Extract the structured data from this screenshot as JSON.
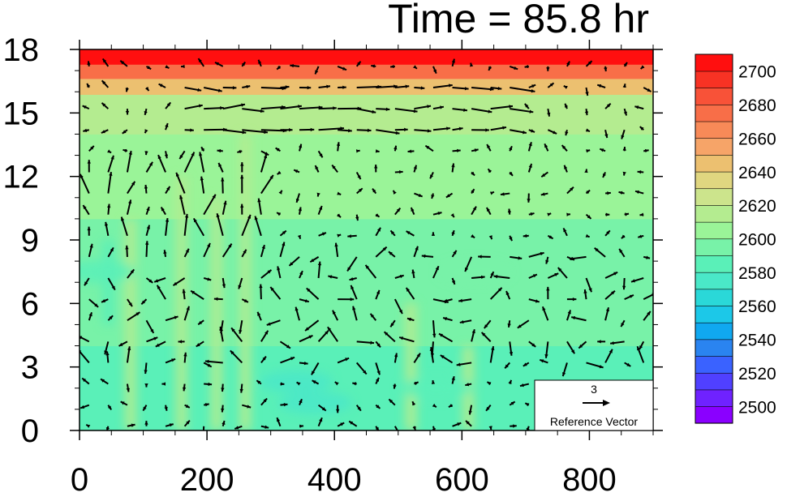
{
  "chart_data": {
    "type": "heatmap",
    "title": "Time = 85.8 hr",
    "xlabel": "",
    "ylabel": "",
    "xlim": [
      0,
      900
    ],
    "ylim": [
      0,
      18
    ],
    "x_ticks": [
      "0",
      "200",
      "400",
      "600",
      "800"
    ],
    "y_ticks": [
      "0",
      "3",
      "6",
      "9",
      "12",
      "15",
      "18"
    ],
    "x_tick_values": [
      0,
      200,
      400,
      600,
      800
    ],
    "y_tick_values": [
      0,
      3,
      6,
      9,
      12,
      15,
      18
    ],
    "colorbar": {
      "levels": [
        2490,
        2500,
        2510,
        2520,
        2530,
        2540,
        2550,
        2560,
        2570,
        2580,
        2590,
        2600,
        2610,
        2620,
        2630,
        2640,
        2650,
        2660,
        2670,
        2680,
        2690,
        2700
      ],
      "labels": [
        "2500",
        "2520",
        "2540",
        "2560",
        "2580",
        "2600",
        "2620",
        "2640",
        "2660",
        "2680",
        "2700"
      ],
      "label_values": [
        2500,
        2520,
        2540,
        2560,
        2580,
        2600,
        2620,
        2640,
        2660,
        2680,
        2700
      ],
      "colors": [
        "#8a00ff",
        "#6f22ff",
        "#5040ff",
        "#3a62ff",
        "#2a84f0",
        "#10a8f0",
        "#1cc8e8",
        "#2ad8d8",
        "#4ae8c8",
        "#5af0b8",
        "#78f2a8",
        "#9af498",
        "#b4ec90",
        "#cce48c",
        "#e0d680",
        "#ecc070",
        "#f6a468",
        "#f88a58",
        "#f86e48",
        "#f85238",
        "#f83224",
        "#ff0f0f"
      ]
    },
    "field": {
      "description_levels": "heights (km) and values sampled from the filled contour field",
      "y_rows": [
        0.5,
        1.5,
        2.5,
        3.5,
        4.5,
        5.5,
        6.5,
        7.5,
        8.5,
        9.5,
        10.5,
        11.5,
        12.5,
        13.5,
        14.5,
        15.5,
        16.25,
        17.0,
        17.6
      ],
      "row_values": [
        2585,
        2580,
        2585,
        2588,
        2590,
        2590,
        2592,
        2594,
        2596,
        2598,
        2602,
        2604,
        2606,
        2608,
        2612,
        2618,
        2640,
        2675,
        2700
      ]
    },
    "reference_vector": {
      "magnitude": "3",
      "label": "Reference Vector"
    },
    "vectors": {
      "x_spacing": 30,
      "y_spacing": 1,
      "x_start": 15,
      "y_start": 0.2
    }
  }
}
